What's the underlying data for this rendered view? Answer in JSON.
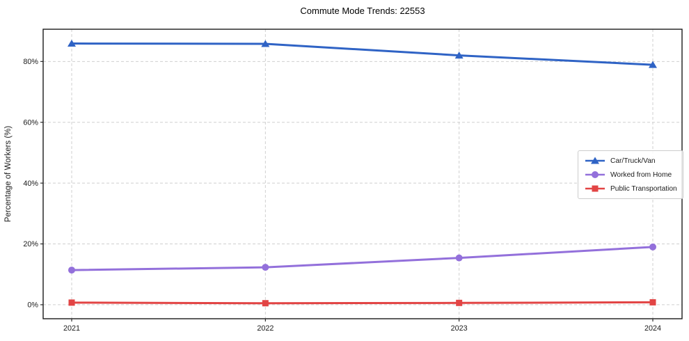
{
  "chart": {
    "title": "Commute Mode Trends: 22553",
    "ylabel": "Percentage of Workers (%)"
  },
  "chart_data": {
    "type": "line",
    "title": "Commute Mode Trends: 22553",
    "xlabel": "",
    "ylabel": "Percentage of Workers (%)",
    "categories": [
      "2021",
      "2022",
      "2023",
      "2024"
    ],
    "series": [
      {
        "name": "Car/Truck/Van",
        "color": "#2f63c5",
        "marker": "triangle",
        "values": [
          85.9,
          85.8,
          82.0,
          78.9
        ]
      },
      {
        "name": "Worked from Home",
        "color": "#9370db",
        "marker": "circle",
        "values": [
          11.4,
          12.3,
          15.4,
          19.0
        ]
      },
      {
        "name": "Public Transportation",
        "color": "#e24444",
        "marker": "square",
        "values": [
          0.7,
          0.5,
          0.6,
          0.8
        ]
      }
    ],
    "yticks": [
      0,
      20,
      40,
      60,
      80
    ],
    "ytick_labels": [
      "0%",
      "20%",
      "40%",
      "60%",
      "80%"
    ],
    "ylim": [
      -4.6,
      90.6
    ],
    "grid": true,
    "grid_style": "dashed",
    "legend_position": "center-right",
    "colors": {
      "background": "#ffffff",
      "frame": "#1a1a1a",
      "grid": "#cfcfcf",
      "legend_border": "#cccccc"
    }
  }
}
